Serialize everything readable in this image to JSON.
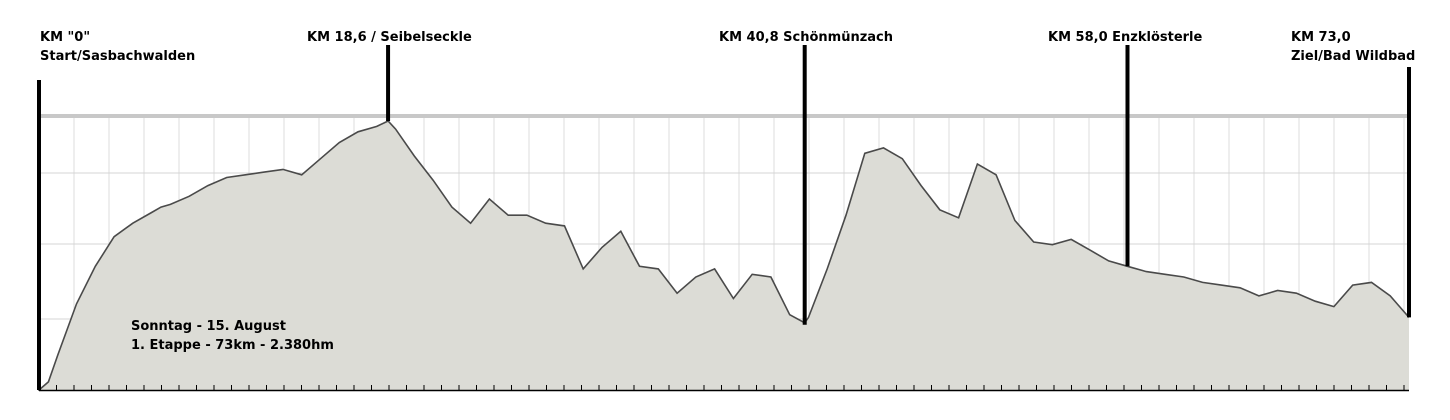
{
  "chart_data": {
    "type": "area",
    "title": "",
    "xlabel": "",
    "ylabel": "",
    "xlim": [
      0,
      73
    ],
    "grid": true,
    "info_lines": [
      "Sonntag - 15. August",
      "1. Etappe - 73km - 2.380hm"
    ],
    "markers": [
      {
        "km": 0,
        "lines": [
          "KM \"0\"",
          "Start/Sasbachwalden"
        ]
      },
      {
        "km": 18.6,
        "lines": [
          "KM 18,6 / Seibelseckle"
        ]
      },
      {
        "km": 40.8,
        "lines": [
          "KM 40,8 Schönmünzach"
        ]
      },
      {
        "km": 58.0,
        "lines": [
          "KM 58,0 Enzklösterle"
        ]
      },
      {
        "km": 73.0,
        "lines": [
          "KM 73,0",
          "Ziel/Bad Wildbad"
        ]
      }
    ],
    "profile_relative": {
      "x": [
        0,
        0.5,
        1,
        2,
        3,
        4,
        5,
        6,
        6.5,
        7,
        8,
        9,
        10,
        11,
        12,
        13,
        14,
        15,
        16,
        17,
        18,
        18.6,
        19,
        20,
        21,
        22,
        23,
        24,
        25,
        26,
        27,
        28,
        29,
        30,
        31,
        32,
        33,
        34,
        35,
        36,
        37,
        38,
        39,
        40,
        40.8,
        41,
        42,
        43,
        44,
        45,
        46,
        47,
        48,
        49,
        50,
        51,
        52,
        53,
        54,
        55,
        56,
        57,
        58,
        59,
        60,
        61,
        62,
        63,
        64,
        65,
        66,
        67,
        68,
        69,
        70,
        71,
        72,
        73
      ],
      "y": [
        0,
        0.03,
        0.13,
        0.32,
        0.46,
        0.57,
        0.62,
        0.66,
        0.68,
        0.69,
        0.72,
        0.76,
        0.79,
        0.8,
        0.81,
        0.82,
        0.8,
        0.86,
        0.92,
        0.96,
        0.98,
        1.0,
        0.97,
        0.87,
        0.78,
        0.68,
        0.62,
        0.71,
        0.65,
        0.65,
        0.62,
        0.61,
        0.45,
        0.53,
        0.59,
        0.46,
        0.45,
        0.36,
        0.42,
        0.45,
        0.34,
        0.43,
        0.42,
        0.28,
        0.25,
        0.27,
        0.45,
        0.65,
        0.88,
        0.9,
        0.86,
        0.76,
        0.67,
        0.64,
        0.84,
        0.8,
        0.63,
        0.55,
        0.54,
        0.56,
        0.52,
        0.48,
        0.46,
        0.44,
        0.43,
        0.42,
        0.4,
        0.39,
        0.38,
        0.35,
        0.37,
        0.36,
        0.33,
        0.31,
        0.39,
        0.4,
        0.35,
        0.27
      ]
    }
  }
}
